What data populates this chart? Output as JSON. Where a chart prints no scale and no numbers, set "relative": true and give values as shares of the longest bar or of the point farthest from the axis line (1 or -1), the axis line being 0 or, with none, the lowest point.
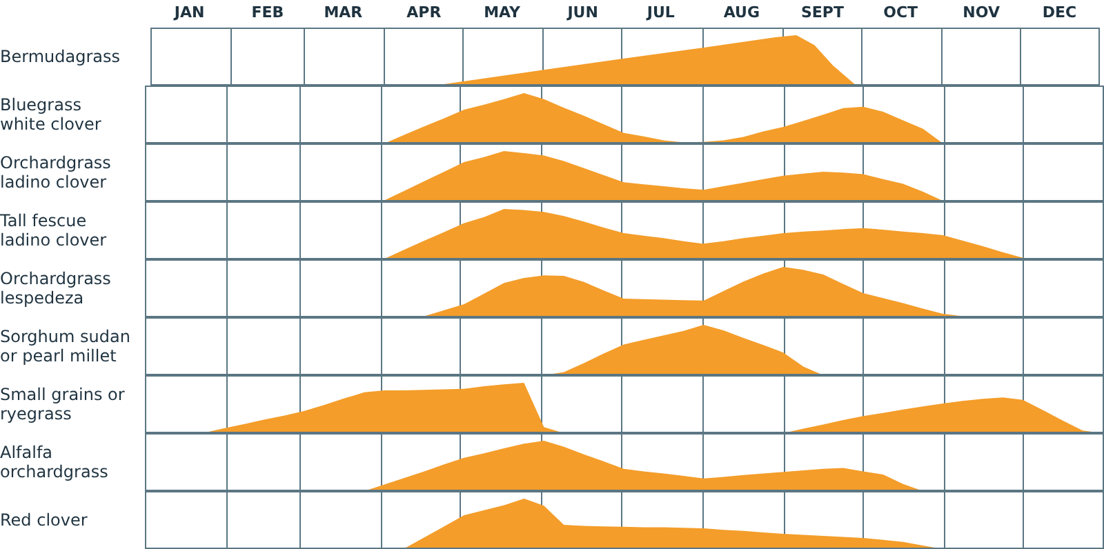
{
  "chart_data": [
    {
      "type": "area",
      "relative": true,
      "title": "Bermudagrass",
      "color": "#f49d2a",
      "xlim": [
        "--01-01",
        "--12-31"
      ],
      "grid": "x",
      "tick_labels": "x",
      "xticks": [
        {
          "value": "--01-01",
          "label": null
        },
        {
          "value": "--01-16",
          "label": "JAN"
        },
        {
          "value": "--02-01",
          "label": null
        },
        {
          "value": "--02-15",
          "label": "FEB"
        },
        {
          "value": "--03-01",
          "label": null
        },
        {
          "value": "--03-16",
          "label": "MAR"
        },
        {
          "value": "--04-01",
          "label": null
        },
        {
          "value": "--04-16",
          "label": "APR"
        },
        {
          "value": "--05-01",
          "label": null
        },
        {
          "value": "--05-16",
          "label": "MAY"
        },
        {
          "value": "--06-01",
          "label": null
        },
        {
          "value": "--06-16",
          "label": "JUN"
        },
        {
          "value": "--07-01",
          "label": null
        },
        {
          "value": "--07-16",
          "label": "JUL"
        },
        {
          "value": "--08-01",
          "label": null
        },
        {
          "value": "--08-16",
          "label": "AUG"
        },
        {
          "value": "--09-01",
          "label": null
        },
        {
          "value": "--09-16",
          "label": "SEPT"
        },
        {
          "value": "--10-01",
          "label": null
        },
        {
          "value": "--10-16",
          "label": "OCT"
        },
        {
          "value": "--11-01",
          "label": null
        },
        {
          "value": "--11-16",
          "label": "NOV"
        },
        {
          "value": "--12-01",
          "label": null
        },
        {
          "value": "--12-16",
          "label": "DEC"
        },
        {
          "value": "--12-31",
          "label": null
        }
      ],
      "x": [
        "--04-20",
        "--06-01",
        "--07-01",
        "--08-01",
        "--08-29",
        "--09-06",
        "--09-13",
        "--09-20",
        "--09-29"
      ],
      "values": [
        0,
        0.31,
        0.53,
        0.75,
        0.96,
        1,
        0.8,
        0.4,
        0
      ]
    },
    {
      "type": "area",
      "relative": true,
      "title": "Bluegrass\nwhite clover",
      "color": "#f49d2a",
      "grid": "x",
      "tick_labels": false,
      "categories": [
        null,
        null,
        null,
        null,
        null,
        null,
        null,
        null,
        null,
        null,
        null,
        null,
        null,
        null,
        null,
        null,
        null,
        null,
        null,
        null,
        null,
        null,
        null,
        null,
        null,
        null,
        null,
        null,
        null,
        null,
        null,
        null,
        null,
        null,
        null,
        null,
        null,
        null,
        null,
        null,
        null,
        null,
        null,
        null,
        null,
        null,
        null,
        null,
        null
      ],
      "values": [
        0,
        0,
        0,
        0,
        0,
        0,
        0,
        0,
        0,
        0,
        0,
        0,
        0,
        0.17,
        0.34,
        0.5,
        0.67,
        0.77,
        0.88,
        1,
        0.88,
        0.71,
        0.55,
        0.38,
        0.21,
        0.14,
        0.06,
        0.02,
        0.03,
        0.06,
        0.13,
        0.24,
        0.33,
        0.45,
        0.57,
        0.7,
        0.73,
        0.63,
        0.46,
        0.29,
        0,
        0,
        0,
        0,
        0,
        0,
        0,
        0,
        0
      ]
    },
    {
      "type": "area",
      "relative": true,
      "title": "Orchardgrass\nladino clover",
      "color": "#f49d2a",
      "grid": "x",
      "tick_labels": false,
      "categories": [
        null,
        null,
        null,
        null,
        null,
        null,
        null,
        null,
        null,
        null,
        null,
        null,
        null,
        null,
        null,
        null,
        null,
        null,
        null,
        null,
        null,
        null,
        null,
        null,
        null,
        null,
        null,
        null,
        null,
        null,
        null,
        null,
        null,
        null,
        null,
        null,
        null,
        null,
        null,
        null,
        null,
        null,
        null,
        null,
        null,
        null,
        null,
        null,
        null
      ],
      "values": [
        0,
        0,
        0,
        0,
        0,
        0,
        0,
        0,
        0,
        0,
        0,
        0,
        0.02,
        0.21,
        0.4,
        0.59,
        0.78,
        0.88,
        1,
        0.96,
        0.91,
        0.8,
        0.66,
        0.52,
        0.38,
        0.34,
        0.3,
        0.26,
        0.23,
        0.3,
        0.37,
        0.44,
        0.51,
        0.55,
        0.59,
        0.57,
        0.54,
        0.44,
        0.35,
        0.19,
        0.01,
        0,
        0,
        0,
        0,
        0,
        0,
        0,
        0
      ]
    },
    {
      "type": "area",
      "relative": true,
      "title": "Tall fescue\nladino clover",
      "color": "#f49d2a",
      "grid": "x",
      "tick_labels": false,
      "categories": [
        null,
        null,
        null,
        null,
        null,
        null,
        null,
        null,
        null,
        null,
        null,
        null,
        null,
        null,
        null,
        null,
        null,
        null,
        null,
        null,
        null,
        null,
        null,
        null,
        null,
        null,
        null,
        null,
        null,
        null,
        null,
        null,
        null,
        null,
        null,
        null,
        null,
        null,
        null,
        null,
        null,
        null,
        null,
        null,
        null,
        null,
        null,
        null,
        null
      ],
      "values": [
        0,
        0,
        0,
        0,
        0,
        0,
        0,
        0,
        0,
        0,
        0,
        0,
        0.01,
        0.19,
        0.37,
        0.54,
        0.72,
        0.84,
        1,
        0.98,
        0.94,
        0.86,
        0.75,
        0.63,
        0.52,
        0.47,
        0.42,
        0.36,
        0.31,
        0.36,
        0.42,
        0.47,
        0.52,
        0.55,
        0.57,
        0.6,
        0.62,
        0.59,
        0.55,
        0.52,
        0.48,
        0.37,
        0.26,
        0.14,
        0.03,
        0,
        0,
        0,
        0
      ]
    },
    {
      "type": "area",
      "relative": true,
      "title": "Orchardgrass\nlespedeza",
      "color": "#f49d2a",
      "grid": "x",
      "tick_labels": false,
      "categories": [
        null,
        null,
        null,
        null,
        null,
        null,
        null,
        null,
        null,
        null,
        null,
        null,
        null,
        null,
        null,
        null,
        null,
        null,
        null,
        null,
        null,
        null,
        null,
        null,
        null,
        null,
        null,
        null,
        null,
        null,
        null,
        null,
        null,
        null,
        null,
        null,
        null,
        null,
        null,
        null,
        null,
        null,
        null,
        null,
        null,
        null,
        null,
        null,
        null
      ],
      "values": [
        0,
        0,
        0,
        0,
        0,
        0,
        0,
        0,
        0,
        0,
        0,
        0,
        0,
        0,
        0.02,
        0.14,
        0.26,
        0.47,
        0.68,
        0.78,
        0.83,
        0.82,
        0.7,
        0.53,
        0.37,
        0.36,
        0.35,
        0.34,
        0.33,
        0.52,
        0.71,
        0.87,
        1,
        0.94,
        0.85,
        0.66,
        0.48,
        0.38,
        0.28,
        0.17,
        0.07,
        0.02,
        0,
        0,
        0,
        0,
        0,
        0,
        0
      ]
    },
    {
      "type": "area",
      "relative": true,
      "title": "Sorghum sudan\nor pearl millet",
      "color": "#f49d2a",
      "grid": "x",
      "tick_labels": false,
      "categories": [
        null,
        null,
        null,
        null,
        null,
        null,
        null,
        null,
        null,
        null,
        null,
        null,
        null,
        null,
        null,
        null,
        null,
        null,
        null,
        null,
        null,
        null,
        null,
        null,
        null,
        null,
        null,
        null,
        null,
        null,
        null,
        null,
        null,
        null,
        null,
        null,
        null,
        null,
        null,
        null,
        null,
        null,
        null,
        null,
        null,
        null,
        null,
        null,
        null
      ],
      "values": [
        0,
        0,
        0,
        0,
        0,
        0,
        0,
        0,
        0,
        0,
        0,
        0,
        0,
        0,
        0,
        0,
        0,
        0,
        0,
        0,
        0,
        0.06,
        0.24,
        0.43,
        0.61,
        0.7,
        0.79,
        0.88,
        1,
        0.89,
        0.74,
        0.6,
        0.45,
        0.17,
        0,
        0,
        0,
        0,
        0,
        0,
        0,
        0,
        0,
        0,
        0,
        0,
        0,
        0,
        0
      ]
    },
    {
      "type": "area",
      "relative": true,
      "title": "Small grains or\nryegrass",
      "color": "#f49d2a",
      "grid": "x",
      "tick_labels": false,
      "categories": [
        null,
        null,
        null,
        null,
        null,
        null,
        null,
        null,
        null,
        null,
        null,
        null,
        null,
        null,
        null,
        null,
        null,
        null,
        null,
        null,
        null,
        null,
        null,
        null,
        null,
        null,
        null,
        null,
        null,
        null,
        null,
        null,
        null,
        null,
        null,
        null,
        null,
        null,
        null,
        null,
        null,
        null,
        null,
        null,
        null,
        null,
        null,
        null,
        null
      ],
      "values": [
        0,
        0,
        0,
        0.01,
        0.1,
        0.18,
        0.27,
        0.35,
        0.44,
        0.56,
        0.69,
        0.81,
        0.85,
        0.85,
        0.86,
        0.87,
        0.88,
        0.93,
        0.97,
        1,
        0.12,
        0,
        0,
        0,
        0,
        0,
        0,
        0,
        0,
        0,
        0,
        0,
        0,
        0.09,
        0.17,
        0.26,
        0.34,
        0.4,
        0.47,
        0.53,
        0.59,
        0.64,
        0.68,
        0.71,
        0.66,
        0.46,
        0.25,
        0.05,
        0
      ]
    },
    {
      "type": "area",
      "relative": true,
      "title": "Alfalfa\norchardgrass",
      "color": "#f49d2a",
      "grid": "x",
      "tick_labels": false,
      "categories": [
        null,
        null,
        null,
        null,
        null,
        null,
        null,
        null,
        null,
        null,
        null,
        null,
        null,
        null,
        null,
        null,
        null,
        null,
        null,
        null,
        null,
        null,
        null,
        null,
        null,
        null,
        null,
        null,
        null,
        null,
        null,
        null,
        null,
        null,
        null,
        null,
        null,
        null,
        null,
        null,
        null,
        null,
        null,
        null,
        null,
        null,
        null,
        null,
        null
      ],
      "values": [
        0,
        0,
        0,
        0,
        0,
        0,
        0,
        0,
        0,
        0,
        0,
        0,
        0.13,
        0.26,
        0.39,
        0.53,
        0.66,
        0.75,
        0.85,
        0.94,
        1,
        0.88,
        0.73,
        0.59,
        0.44,
        0.39,
        0.35,
        0.3,
        0.25,
        0.28,
        0.32,
        0.35,
        0.38,
        0.41,
        0.44,
        0.46,
        0.39,
        0.33,
        0.14,
        0,
        0,
        0,
        0,
        0,
        0,
        0,
        0,
        0,
        0
      ]
    },
    {
      "type": "area",
      "relative": true,
      "title": "Red clover",
      "color": "#f49d2a",
      "grid": "x",
      "tick_labels": false,
      "categories": [
        null,
        null,
        null,
        null,
        null,
        null,
        null,
        null,
        null,
        null,
        null,
        null,
        null,
        null,
        null,
        null,
        null,
        null,
        null,
        null,
        null,
        null,
        null,
        null,
        null,
        null,
        null,
        null,
        null,
        null,
        null,
        null,
        null,
        null,
        null,
        null,
        null,
        null,
        null,
        null,
        null,
        null,
        null,
        null,
        null,
        null,
        null,
        null,
        null
      ],
      "values": [
        0,
        0,
        0,
        0,
        0,
        0,
        0,
        0,
        0,
        0,
        0,
        0,
        0,
        0.01,
        0.23,
        0.45,
        0.67,
        0.77,
        0.87,
        1,
        0.86,
        0.48,
        0.46,
        0.45,
        0.44,
        0.43,
        0.43,
        0.42,
        0.41,
        0.38,
        0.36,
        0.33,
        0.3,
        0.28,
        0.26,
        0.24,
        0.22,
        0.18,
        0.14,
        0.07,
        0,
        0,
        0,
        0,
        0,
        0,
        0,
        0,
        0
      ]
    }
  ]
}
